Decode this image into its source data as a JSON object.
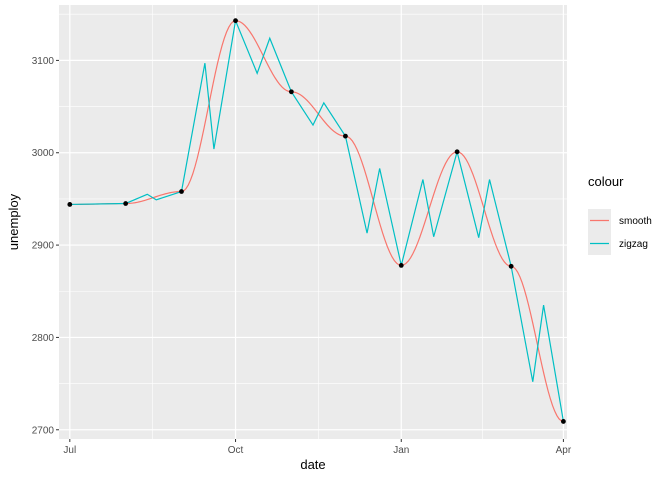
{
  "chart_data": {
    "type": "line",
    "xlabel": "date",
    "ylabel": "unemploy",
    "x_ticks": [
      "Jul",
      "Oct",
      "Jan",
      "Apr"
    ],
    "y_ticks": [
      2700,
      2800,
      2900,
      3000,
      3100
    ],
    "xlim_days": [
      -6,
      276
    ],
    "ylim": [
      2690,
      3160
    ],
    "tick_days": [
      0,
      92,
      184,
      274
    ],
    "points": {
      "x_days": [
        0,
        31,
        62,
        92,
        123,
        153,
        184,
        215,
        245,
        274
      ],
      "y": [
        2944,
        2945,
        2958,
        3143,
        3066,
        3018,
        2878,
        3001,
        2877,
        2709
      ]
    },
    "legend": {
      "title": "colour",
      "placement": "right",
      "entries": [
        {
          "label": "smooth",
          "color": "#F8766D"
        },
        {
          "label": "zigzag",
          "color": "#00BFC4"
        }
      ]
    },
    "series": [
      {
        "name": "smooth",
        "color": "#F8766D"
      },
      {
        "name": "zigzag",
        "color": "#00BFC4",
        "x_days": [
          0,
          31,
          43,
          48,
          62,
          75,
          80,
          92,
          104,
          111,
          123,
          135,
          141,
          153,
          165,
          172,
          184,
          196,
          202,
          215,
          227,
          233,
          245,
          257,
          263,
          274
        ],
        "y": [
          2944,
          2945,
          2955,
          2949,
          2958,
          3097,
          3004,
          3143,
          3086,
          3124,
          3066,
          3030,
          3054,
          3018,
          2913,
          2983,
          2878,
          2971,
          2909,
          3001,
          2908,
          2971,
          2877,
          2752,
          2835,
          2709
        ]
      }
    ],
    "panel_background": "#EBEBEB",
    "grid_color": "#FFFFFF",
    "point_color": "#000000"
  }
}
